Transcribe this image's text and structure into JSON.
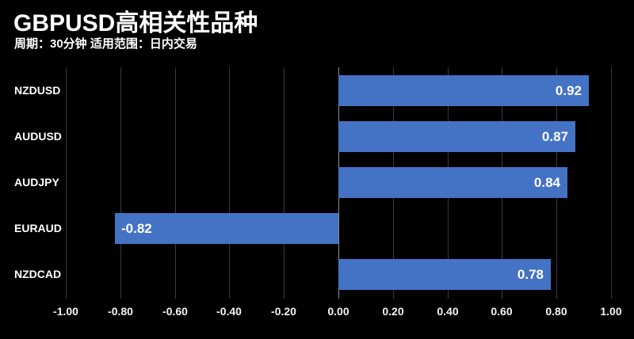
{
  "header": {
    "title": "GBPUSD高相关性品种",
    "subtitle": "周期：30分钟 适用范围：日内交易"
  },
  "colors": {
    "background": "#000000",
    "bar": "#4472C4",
    "gridline": "#3a3a3a",
    "zero_line": "#8f8f8f",
    "text": "#ffffff",
    "tick_text": "#f2f2f2"
  },
  "chart_data": {
    "type": "bar",
    "orientation": "horizontal",
    "title": "GBPUSD高相关性品种",
    "subtitle": "周期：30分钟 适用范围：日内交易",
    "categories": [
      "NZDUSD",
      "AUDUSD",
      "AUDJPY",
      "EURAUD",
      "NZDCAD"
    ],
    "values": [
      0.92,
      0.87,
      0.84,
      -0.82,
      0.78
    ],
    "value_labels": [
      "0.92",
      "0.87",
      "0.84",
      "-0.82",
      "0.78"
    ],
    "xlabel": "",
    "ylabel": "",
    "xlim": [
      -1.0,
      1.0
    ],
    "xticks": [
      -1.0,
      -0.8,
      -0.6,
      -0.4,
      -0.2,
      0.0,
      0.2,
      0.4,
      0.6,
      0.8,
      1.0
    ],
    "xtick_labels": [
      "-1.00",
      "-0.80",
      "-0.60",
      "-0.40",
      "-0.20",
      "0.00",
      "0.20",
      "0.40",
      "0.60",
      "0.80",
      "1.00"
    ],
    "grid": true,
    "legend": false
  }
}
